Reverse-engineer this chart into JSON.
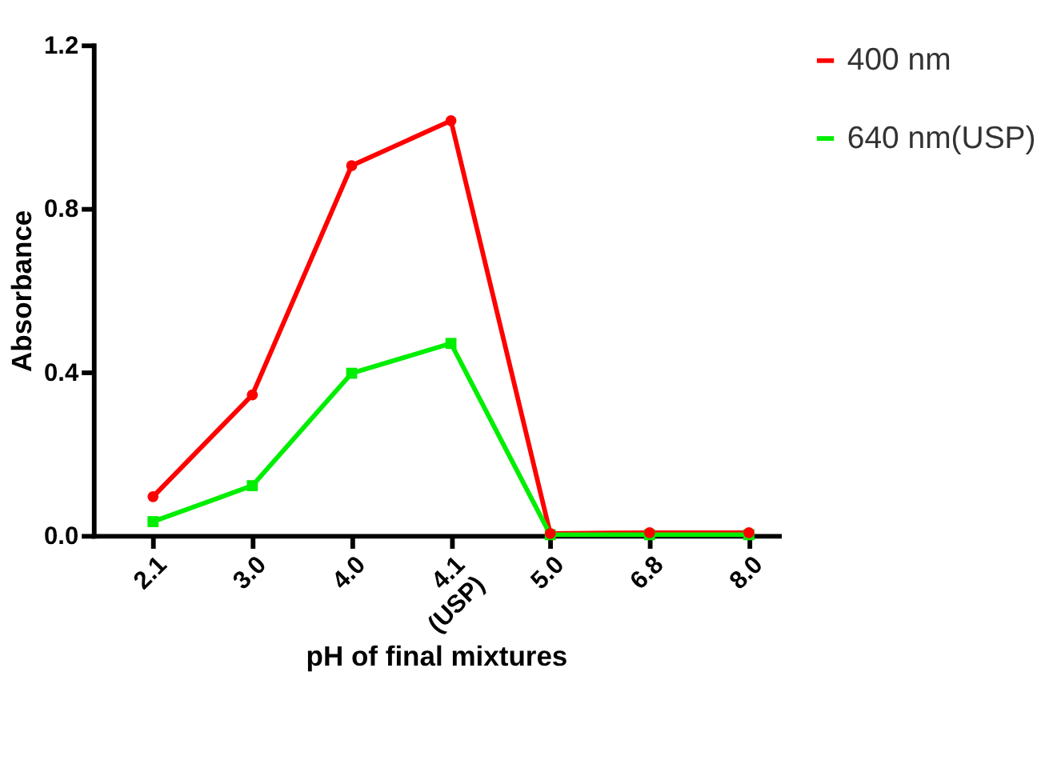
{
  "chart_data": {
    "type": "line",
    "xlabel": "pH of final mixtures",
    "ylabel": "Absorbance",
    "categories": [
      "2.1",
      "3.0",
      "4.0",
      "4.1\n(USP)",
      "5.0",
      "6.8",
      "8.0"
    ],
    "series": [
      {
        "name": "400 nm",
        "color": "#ff0000",
        "marker": "circle",
        "values": [
          0.095,
          0.344,
          0.905,
          1.015,
          0.005,
          0.007,
          0.007
        ]
      },
      {
        "name": "640 nm(USP)",
        "color": "#00ee00",
        "marker": "square",
        "values": [
          0.034,
          0.122,
          0.397,
          0.47,
          0.002,
          0.002,
          0.002
        ]
      }
    ],
    "ylim": [
      0,
      1.2
    ],
    "yticks": [
      {
        "value": 0,
        "label": "0.0"
      },
      {
        "value": 0.4,
        "label": "0.4"
      },
      {
        "value": 0.8,
        "label": "0.8"
      },
      {
        "value": 1.2,
        "label": "1.2"
      }
    ],
    "grid": false,
    "legend": "top right",
    "line_style": "solid"
  }
}
